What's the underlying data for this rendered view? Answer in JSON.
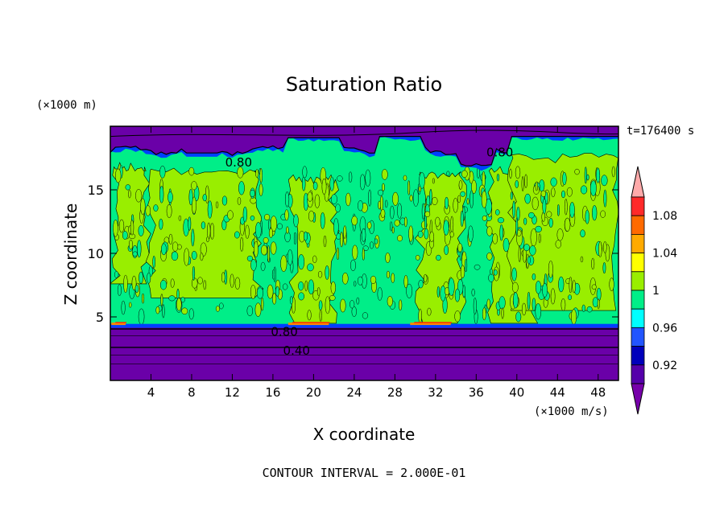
{
  "chart_data": {
    "type": "heatmap",
    "title": "Saturation Ratio",
    "xlabel": "X coordinate",
    "ylabel": "Z coordinate",
    "x_unit": "(×1000 m/s)",
    "y_unit": "(×1000 m)",
    "time_label": "t=176400 s",
    "footer": "CONTOUR INTERVAL = 2.000E-01",
    "xlim": [
      0,
      50
    ],
    "ylim": [
      0,
      20
    ],
    "x_ticks": [
      4,
      8,
      12,
      16,
      20,
      24,
      28,
      32,
      36,
      40,
      44,
      48
    ],
    "y_ticks": [
      5,
      10,
      15
    ],
    "contour_labels": [
      {
        "text": "0.80",
        "x": 11.3,
        "z": 17.2
      },
      {
        "text": "0.80",
        "x": 37.0,
        "z": 18.0
      },
      {
        "text": "0.80",
        "x": 15.8,
        "z": 3.9
      },
      {
        "text": "0.40",
        "x": 17.0,
        "z": 2.4
      }
    ],
    "colorbar": {
      "levels": [
        "0.92",
        "0.96",
        "1",
        "1.04",
        "1.08"
      ],
      "colors": [
        "#ffaaaa",
        "#ff2a2a",
        "#ff6a00",
        "#ffaa00",
        "#ffff00",
        "#99ee00",
        "#00ee88",
        "#00ffff",
        "#2255ff",
        "#0000bb",
        "#5500aa",
        "#7700aa"
      ]
    },
    "palette": {
      "low": "#6a00a8",
      "band_092": "#2a00a8",
      "band_096": "#0040ff",
      "band_098": "#00e0ff",
      "green": "#00ee88",
      "lime": "#99ee00",
      "yellow": "#ffee00",
      "orange": "#ff8800",
      "red": "#ff2a00"
    },
    "regions": [
      {
        "x0": 0,
        "x1": 50,
        "z0": 0,
        "z1": 4.2,
        "value": "0.00–0.80 (purple)"
      },
      {
        "x0": 0,
        "x1": 50,
        "z0": 4.2,
        "z1": 18.0,
        "value": "0.98–1.02 (green/lime)"
      },
      {
        "x0": 0,
        "x1": 50,
        "z0": 18.0,
        "z1": 20,
        "value": "<0.80 (purple)"
      }
    ]
  }
}
